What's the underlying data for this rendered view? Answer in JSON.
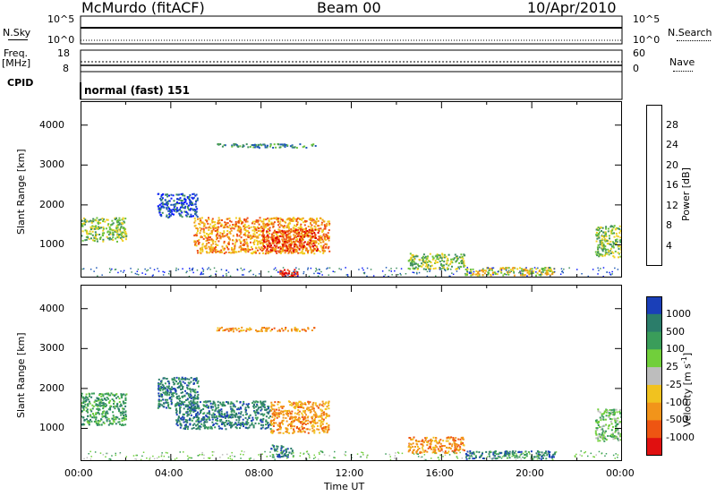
{
  "header": {
    "station": "McMurdo (fitACF)",
    "beam": "Beam 00",
    "date": "10/Apr/2010"
  },
  "strips": {
    "nsky_label": "N.Sky",
    "nsky_ticks": [
      "10^5",
      "10^0"
    ],
    "nsearch_label": "N.Search",
    "nsearch_ticks": [
      "10^5",
      "10^0"
    ],
    "freq_label": "Freq.",
    "freq_unit": "[MHz]",
    "freq_ticks": [
      "18",
      "8"
    ],
    "nave_label": "Nave",
    "nave_ticks": [
      "60",
      "0"
    ],
    "cpid_label": "CPID",
    "cpid_value": "normal (fast) 151"
  },
  "chart_data": [
    {
      "type": "heatmap",
      "title": "",
      "xlabel": "Time UT",
      "ylabel": "Slant Range [km]",
      "x_ticks": [
        "00:00",
        "04:00",
        "08:00",
        "12:00",
        "16:00",
        "20:00",
        "00:00"
      ],
      "xlim_hours": [
        0,
        24
      ],
      "y_ticks": [
        "1000",
        "2000",
        "3000",
        "4000"
      ],
      "ylim_km": [
        180,
        4600
      ],
      "colorbar": {
        "label": "Power [dB]",
        "ticks": [
          "4",
          "8",
          "12",
          "16",
          "20",
          "24",
          "28"
        ],
        "range": [
          0,
          30
        ],
        "colors": [
          "#0a19ff",
          "#1f59b7",
          "#3f8f5f",
          "#6bc23c",
          "#f0d020",
          "#f09a18",
          "#ee4d12",
          "#e00000"
        ]
      },
      "echo_regions": [
        {
          "start_h": 0.0,
          "end_h": 2.0,
          "range_km": [
            1100,
            1700
          ],
          "level": 12
        },
        {
          "start_h": 3.4,
          "end_h": 5.2,
          "range_km": [
            1700,
            2300
          ],
          "level": 6
        },
        {
          "start_h": 5.0,
          "end_h": 11.0,
          "range_km": [
            800,
            1700
          ],
          "level": 20
        },
        {
          "start_h": 8.0,
          "end_h": 10.5,
          "range_km": [
            850,
            1400
          ],
          "level": 26
        },
        {
          "start_h": 8.8,
          "end_h": 9.6,
          "range_km": [
            200,
            400
          ],
          "level": 28
        },
        {
          "start_h": 14.5,
          "end_h": 17.0,
          "range_km": [
            400,
            800
          ],
          "level": 14
        },
        {
          "start_h": 17.0,
          "end_h": 21.0,
          "range_km": [
            250,
            450
          ],
          "level": 16
        },
        {
          "start_h": 22.8,
          "end_h": 24.0,
          "range_km": [
            700,
            1500
          ],
          "level": 14
        },
        {
          "start_h": 6.0,
          "end_h": 10.4,
          "range_km": [
            3450,
            3550
          ],
          "level": 10
        }
      ]
    },
    {
      "type": "heatmap",
      "title": "",
      "xlabel": "Time UT",
      "ylabel": "Slant Range [km]",
      "x_ticks": [
        "00:00",
        "04:00",
        "08:00",
        "12:00",
        "16:00",
        "20:00",
        "00:00"
      ],
      "xlim_hours": [
        0,
        24
      ],
      "y_ticks": [
        "1000",
        "2000",
        "3000",
        "4000"
      ],
      "ylim_km": [
        180,
        4600
      ],
      "colorbar": {
        "label": "Velocity [m s",
        "label_sup": "-1",
        "label_close": "]",
        "ticks": [
          "1000",
          "500",
          "100",
          "25",
          "-25",
          "-100",
          "-500",
          "-1000"
        ],
        "colors": [
          "#1a3fb8",
          "#2b7d6a",
          "#3a9d5a",
          "#71cf3b",
          "#bdbdbd",
          "#f1c21f",
          "#f2941a",
          "#ee5512",
          "#e01010"
        ]
      },
      "echo_regions": [
        {
          "start_h": 0.0,
          "end_h": 2.0,
          "range_km": [
            1100,
            1900
          ],
          "velocity": 100
        },
        {
          "start_h": 3.4,
          "end_h": 5.2,
          "range_km": [
            1500,
            2300
          ],
          "velocity": 300
        },
        {
          "start_h": 4.2,
          "end_h": 8.4,
          "range_km": [
            1000,
            1700
          ],
          "velocity": 300
        },
        {
          "start_h": 8.4,
          "end_h": 11.0,
          "range_km": [
            900,
            1700
          ],
          "velocity": -300
        },
        {
          "start_h": 8.4,
          "end_h": 9.4,
          "range_km": [
            300,
            600
          ],
          "velocity": 500
        },
        {
          "start_h": 14.5,
          "end_h": 17.0,
          "range_km": [
            400,
            800
          ],
          "velocity": -100
        },
        {
          "start_h": 17.0,
          "end_h": 21.0,
          "range_km": [
            250,
            450
          ],
          "velocity": 300
        },
        {
          "start_h": 22.8,
          "end_h": 24.0,
          "range_km": [
            700,
            1500
          ],
          "velocity": 50
        },
        {
          "start_h": 6.0,
          "end_h": 10.4,
          "range_km": [
            3450,
            3550
          ],
          "velocity": -100
        }
      ]
    }
  ]
}
